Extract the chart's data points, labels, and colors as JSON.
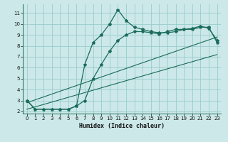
{
  "xlabel": "Humidex (Indice chaleur)",
  "bg_color": "#cce8e8",
  "grid_color": "#99cccc",
  "line_color": "#1a6b5a",
  "xlim": [
    -0.5,
    23.5
  ],
  "ylim": [
    1.8,
    11.8
  ],
  "x_ticks": [
    0,
    1,
    2,
    3,
    4,
    5,
    6,
    7,
    8,
    9,
    10,
    11,
    12,
    13,
    14,
    15,
    16,
    17,
    18,
    19,
    20,
    21,
    22,
    23
  ],
  "y_ticks": [
    2,
    3,
    4,
    5,
    6,
    7,
    8,
    9,
    10,
    11
  ],
  "line1_x": [
    0,
    1,
    2,
    3,
    4,
    5,
    6,
    7,
    8,
    9,
    10,
    11,
    12,
    13,
    14,
    15,
    16,
    17,
    18,
    19,
    20,
    21,
    22,
    23
  ],
  "line1_y": [
    3.0,
    2.2,
    2.2,
    2.2,
    2.2,
    2.2,
    2.5,
    6.3,
    8.3,
    9.0,
    10.0,
    11.3,
    10.3,
    9.7,
    9.5,
    9.3,
    9.2,
    9.2,
    9.3,
    9.5,
    9.5,
    9.7,
    9.7,
    8.3
  ],
  "line2_x": [
    0,
    1,
    2,
    3,
    4,
    5,
    6,
    7,
    8,
    9,
    10,
    11,
    12,
    13,
    14,
    15,
    16,
    17,
    18,
    19,
    20,
    21,
    22,
    23
  ],
  "line2_y": [
    3.0,
    2.2,
    2.2,
    2.2,
    2.2,
    2.2,
    2.5,
    3.0,
    5.0,
    6.3,
    7.5,
    8.5,
    9.0,
    9.3,
    9.3,
    9.2,
    9.1,
    9.3,
    9.5,
    9.5,
    9.6,
    9.8,
    9.6,
    8.5
  ],
  "line3_x": [
    0,
    23
  ],
  "line3_y": [
    2.2,
    7.2
  ],
  "line4_x": [
    0,
    23
  ],
  "line4_y": [
    2.8,
    8.8
  ]
}
